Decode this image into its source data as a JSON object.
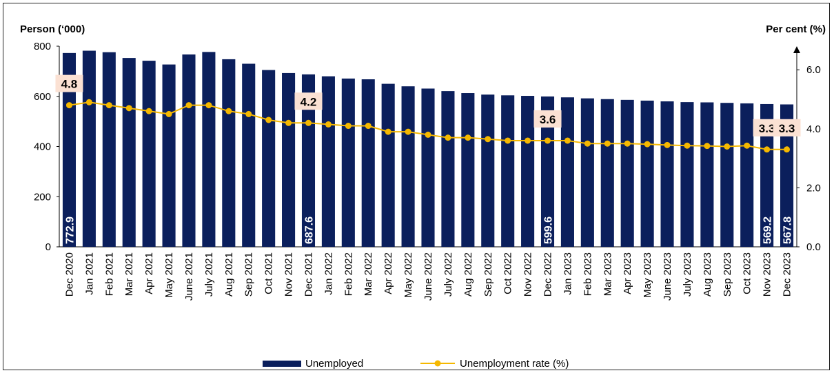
{
  "chart_data": {
    "type": "bar",
    "categories": [
      "Dec 2020",
      "Jan 2021",
      "Feb 2021",
      "Mar 2021",
      "Apr 2021",
      "May 2021",
      "June 2021",
      "July 2021",
      "Aug 2021",
      "Sep 2021",
      "Oct 2021",
      "Nov 2021",
      "Dec 2021",
      "Jan 2022",
      "Feb 2022",
      "Mar 2022",
      "Apr 2022",
      "May 2022",
      "June 2022",
      "July 2022",
      "Aug 2022",
      "Sep 2022",
      "Oct 2022",
      "Nov 2022",
      "Dec 2022",
      "Jan 2023",
      "Feb 2023",
      "Mar 2023",
      "Apr 2023",
      "May 2023",
      "June 2023",
      "July 2023",
      "Aug 2023",
      "Sep 2023",
      "Oct 2023",
      "Nov 2023",
      "Dec 2023"
    ],
    "series": [
      {
        "name": "Unemployed",
        "type": "bar",
        "axis": "left",
        "values": [
          772.9,
          782,
          776,
          753,
          742,
          727,
          767,
          777,
          748,
          730,
          705,
          693,
          687.6,
          680,
          671,
          668,
          650,
          640,
          631,
          621,
          613,
          607,
          604,
          602,
          599.6,
          596,
          592,
          589,
          586,
          583,
          580,
          577,
          576,
          574,
          572,
          569.2,
          567.8
        ],
        "labels": {
          "0": "772.9",
          "12": "687.6",
          "24": "599.6",
          "35": "569.2",
          "36": "567.8"
        }
      },
      {
        "name": "Unemployment rate (%)",
        "type": "line",
        "axis": "right",
        "values": [
          4.8,
          4.9,
          4.8,
          4.7,
          4.6,
          4.5,
          4.8,
          4.8,
          4.6,
          4.5,
          4.3,
          4.2,
          4.2,
          4.15,
          4.1,
          4.1,
          3.9,
          3.9,
          3.8,
          3.7,
          3.7,
          3.65,
          3.6,
          3.6,
          3.6,
          3.6,
          3.5,
          3.5,
          3.5,
          3.48,
          3.45,
          3.43,
          3.42,
          3.4,
          3.43,
          3.3,
          3.3
        ],
        "labels": {
          "0": "4.8",
          "12": "4.2",
          "24": "3.6",
          "35": "3.3",
          "36": "3.3"
        }
      }
    ],
    "ylabel_left": "Person (‘000)",
    "ylabel_right": "Per cent (%)",
    "ylim_left": [
      0,
      800
    ],
    "ylim_right": [
      0,
      6.8
    ],
    "yticks_left": [
      "0",
      "200",
      "400",
      "600",
      "800"
    ],
    "yticks_right": [
      "0.0",
      "2.0",
      "4.0",
      "6.0"
    ],
    "legend_position": "bottom",
    "colors": {
      "bar": "#0b1f5c",
      "line": "#f5b800",
      "label_box": "#fbe1d3"
    }
  }
}
